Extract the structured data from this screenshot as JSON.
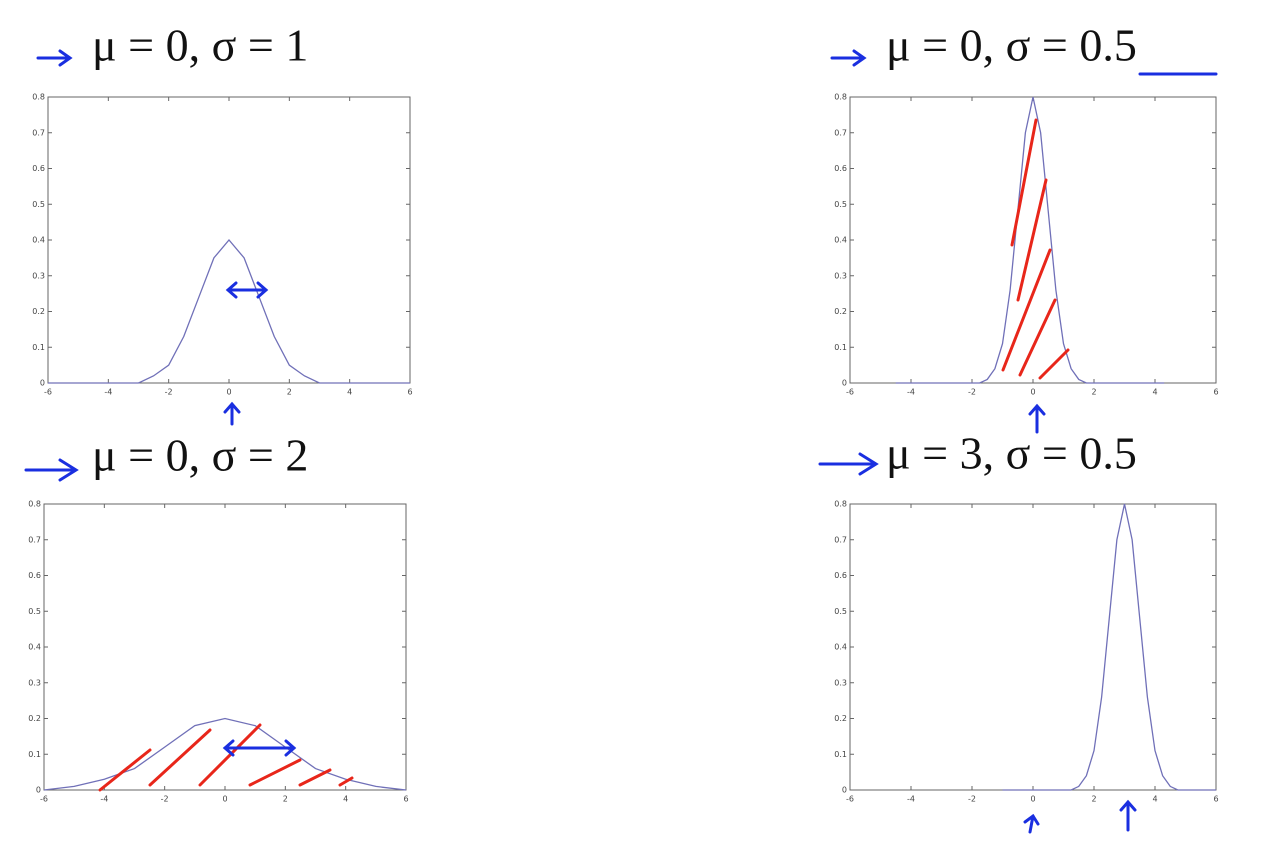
{
  "chart_data": [
    {
      "type": "line",
      "title": "μ = 0, σ = 1",
      "color": "#7070b8",
      "x": [
        -6,
        -3,
        -2.5,
        -2,
        -1.5,
        -1,
        -0.5,
        0,
        0.5,
        1,
        1.5,
        2,
        2.5,
        3,
        6
      ],
      "values": [
        0,
        0,
        0.02,
        0.05,
        0.13,
        0.24,
        0.35,
        0.4,
        0.35,
        0.24,
        0.13,
        0.05,
        0.02,
        0,
        0
      ],
      "xlim": [
        -6,
        6
      ],
      "xticks": [
        -6,
        -4,
        -2,
        0,
        2,
        4,
        6
      ],
      "ylim": [
        0,
        0.8
      ],
      "yticks": [
        0,
        0.1,
        0.2,
        0.3,
        0.4,
        0.5,
        0.6,
        0.7,
        0.8
      ]
    },
    {
      "type": "line",
      "title": "μ = 0, σ = 0.5",
      "color": "#7070b8",
      "x": [
        -4.5,
        -2,
        -1.75,
        -1.5,
        -1.25,
        -1,
        -0.75,
        -0.5,
        -0.25,
        0,
        0.25,
        0.5,
        0.75,
        1,
        1.25,
        1.5,
        1.75,
        2,
        4.3
      ],
      "values": [
        0,
        0,
        0,
        0.01,
        0.04,
        0.11,
        0.26,
        0.48,
        0.7,
        0.8,
        0.7,
        0.48,
        0.26,
        0.11,
        0.04,
        0.01,
        0,
        0,
        0
      ],
      "xlim": [
        -6,
        6
      ],
      "xticks": [
        -6,
        -4,
        -2,
        0,
        2,
        4,
        6
      ],
      "ylim": [
        0,
        0.8
      ],
      "yticks": [
        0,
        0.1,
        0.2,
        0.3,
        0.4,
        0.5,
        0.6,
        0.7,
        0.8
      ]
    },
    {
      "type": "line",
      "title": "μ = 0, σ = 2",
      "color": "#7070b8",
      "x": [
        -6,
        -5,
        -4,
        -3,
        -2,
        -1,
        0,
        1,
        2,
        3,
        4,
        5,
        6
      ],
      "values": [
        0,
        0.01,
        0.03,
        0.06,
        0.12,
        0.18,
        0.2,
        0.18,
        0.12,
        0.06,
        0.03,
        0.01,
        0
      ],
      "xlim": [
        -6,
        6
      ],
      "xticks": [
        -6,
        -4,
        -2,
        0,
        2,
        4,
        6
      ],
      "ylim": [
        0,
        0.8
      ],
      "yticks": [
        0,
        0.1,
        0.2,
        0.3,
        0.4,
        0.5,
        0.6,
        0.7,
        0.8
      ]
    },
    {
      "type": "line",
      "title": "μ = 3, σ = 0.5",
      "color": "#7070b8",
      "x": [
        -1,
        1,
        1.25,
        1.5,
        1.75,
        2,
        2.25,
        2.5,
        2.75,
        3,
        3.25,
        3.5,
        3.75,
        4,
        4.25,
        4.5,
        4.75,
        5,
        6
      ],
      "values": [
        0,
        0,
        0,
        0.01,
        0.04,
        0.11,
        0.26,
        0.48,
        0.7,
        0.8,
        0.7,
        0.48,
        0.26,
        0.11,
        0.04,
        0.01,
        0,
        0,
        0
      ],
      "xlim": [
        -6,
        6
      ],
      "xticks": [
        -6,
        -4,
        -2,
        0,
        2,
        4,
        6
      ],
      "ylim": [
        0,
        0.8
      ],
      "yticks": [
        0,
        0.1,
        0.2,
        0.3,
        0.4,
        0.5,
        0.6,
        0.7,
        0.8
      ]
    }
  ]
}
